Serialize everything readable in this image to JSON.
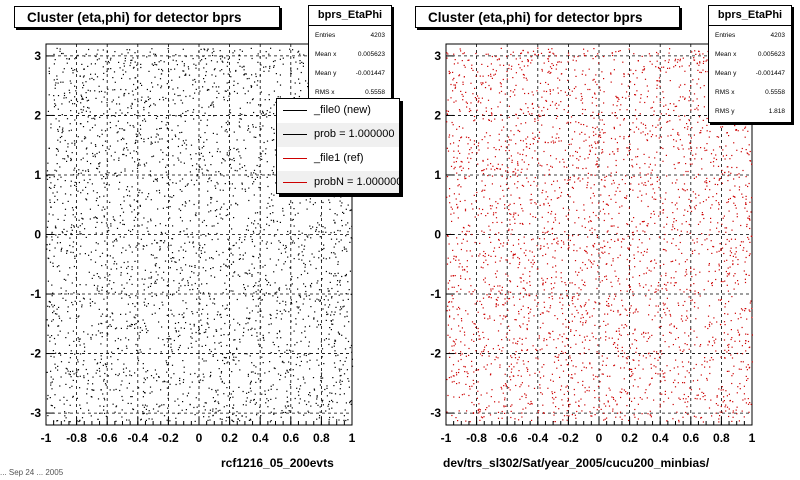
{
  "chart_data": [
    {
      "type": "scatter",
      "title": "Cluster (eta,phi) for detector bprs",
      "xlabel": "rcf1216_05_200evts",
      "xlim": [
        -1,
        1
      ],
      "ylim": [
        -3.2,
        3.2
      ],
      "xticks": [
        "-1",
        "-0.8",
        "-0.6",
        "-0.4",
        "-0.2",
        "0",
        "0.2",
        "0.4",
        "0.6",
        "0.8",
        "1"
      ],
      "yticks": [
        "-3",
        "-2",
        "-1",
        "0",
        "1",
        "2",
        "3"
      ],
      "grid": true,
      "marker_color": "#000000",
      "stats": {
        "name": "bprs_EtaPhi",
        "rows": [
          {
            "label": "Entries",
            "value": "4203"
          },
          {
            "label": "Mean x",
            "value": "0.005623"
          },
          {
            "label": "Mean y",
            "value": "-0.001447"
          },
          {
            "label": "RMS x",
            "value": "0.5558"
          }
        ]
      },
      "legend": {
        "placement": "top-right",
        "entries": [
          {
            "label": "_file0 (new)",
            "color": "#000000"
          },
          {
            "label": "prob = 1.000000",
            "color": "#000000"
          },
          {
            "label": "_file1 (ref)",
            "color": "#cc0000"
          },
          {
            "label": "probN = 1.000000",
            "color": "#cc0000"
          }
        ]
      }
    },
    {
      "type": "scatter",
      "title": "Cluster (eta,phi) for detector bprs",
      "xlabel": "dev/trs_sl302/Sat/year_2005/cucu200_minbias/",
      "xlim": [
        -1,
        1
      ],
      "ylim": [
        -3.2,
        3.2
      ],
      "xticks": [
        "-1",
        "-0.8",
        "-0.6",
        "-0.4",
        "-0.2",
        "0",
        "0.2",
        "0.4",
        "0.6",
        "0.8",
        "1"
      ],
      "yticks": [
        "-3",
        "-2",
        "-1",
        "0",
        "1",
        "2",
        "3"
      ],
      "grid": true,
      "marker_color": "#cc0000",
      "stats": {
        "name": "bprs_EtaPhi",
        "rows": [
          {
            "label": "Entries",
            "value": "4203"
          },
          {
            "label": "Mean x",
            "value": "0.005623"
          },
          {
            "label": "Mean y",
            "value": "-0.001447"
          },
          {
            "label": "RMS x",
            "value": "0.5558"
          },
          {
            "label": "RMS y",
            "value": "1.818"
          }
        ]
      }
    }
  ],
  "footer": {
    "corner_text": "... Sep 24 ... 2005"
  }
}
